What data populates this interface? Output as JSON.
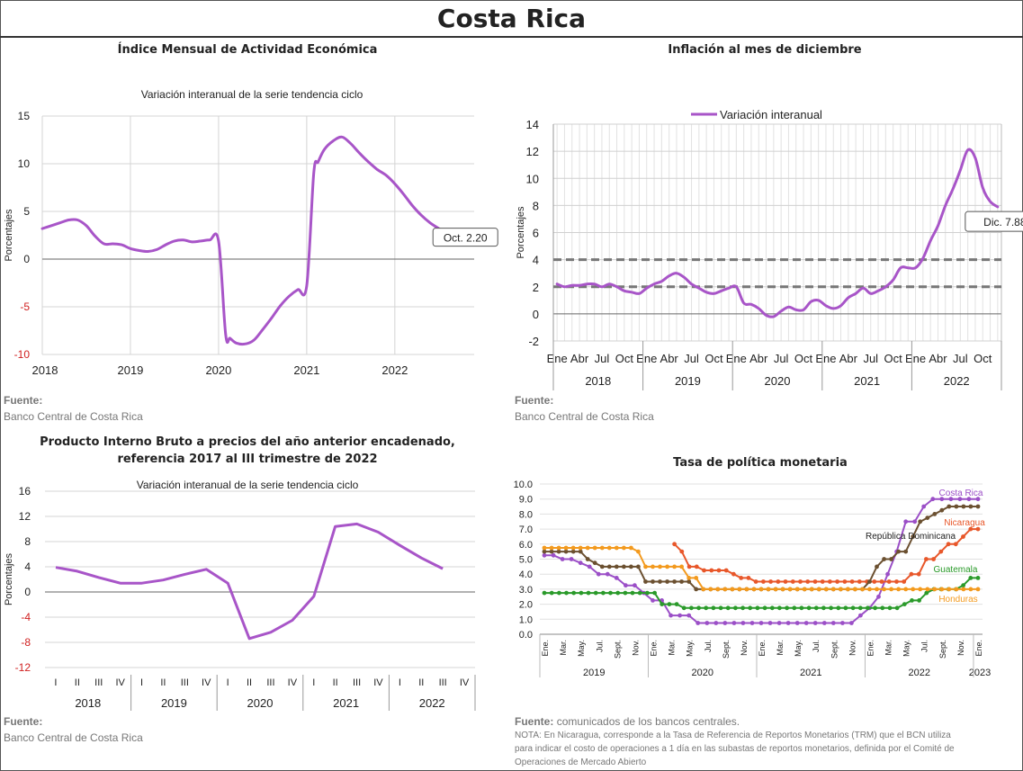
{
  "page": {
    "title": "Costa Rica"
  },
  "panels": {
    "imae": {
      "title": "Índice Mensual de  Actividad Económica",
      "subtitle": "Variación interanual de la serie tendencia ciclo",
      "source_label": "Fuente:",
      "source": "Banco Central de Costa Rica"
    },
    "infl": {
      "title": "Inflación al mes de diciembre",
      "source_label": "Fuente:",
      "source": "Banco Central de Costa Rica"
    },
    "pib": {
      "title_line1": "Producto Interno Bruto a precios del año anterior encadenado,",
      "title_line2": "referencia 2017 al III trimestre de 2022",
      "subtitle": "Variación interanual de la serie tendencia ciclo",
      "source_label": "Fuente:",
      "source": "Banco Central de Costa Rica"
    },
    "tpm": {
      "title": "Tasa de política monetaria",
      "source_label": "Fuente:",
      "source": "comunicados de los bancos centrales.",
      "note_lines": [
        "NOTA: En Nicaragua, corresponde a la Tasa de Referencia de Reportos Monetarios (TRM) que el BCN utiliza",
        "para indicar el costo de operaciones a 1 día en las subastas de reportos monetarios, definida por el Comité de",
        "Operaciones de Mercado Abierto"
      ]
    }
  },
  "chart_data": [
    {
      "id": "imae",
      "type": "line",
      "ylabel": "Porcentajes",
      "ylim": [
        -10,
        15
      ],
      "yticks": [
        15,
        10,
        5,
        0,
        -5,
        -10
      ],
      "xlim": [
        2018,
        2022.9
      ],
      "xticks": [
        2018,
        2019,
        2020,
        2021,
        2022
      ],
      "series": [
        {
          "color": "#a855c8",
          "x": [
            2018,
            2018.1,
            2018.2,
            2018.3,
            2018.4,
            2018.5,
            2018.6,
            2018.7,
            2018.8,
            2018.9,
            2019,
            2019.1,
            2019.2,
            2019.3,
            2019.4,
            2019.5,
            2019.6,
            2019.7,
            2019.8,
            2019.9,
            2020,
            2020.08,
            2020.13,
            2020.2,
            2020.3,
            2020.4,
            2020.5,
            2020.6,
            2020.7,
            2020.8,
            2020.9,
            2021,
            2021.08,
            2021.13,
            2021.2,
            2021.3,
            2021.4,
            2021.5,
            2021.6,
            2021.7,
            2021.8,
            2021.9,
            2022,
            2022.1,
            2022.2,
            2022.3,
            2022.4,
            2022.5,
            2022.6,
            2022.7,
            2022.8
          ],
          "y": [
            3.2,
            3.5,
            3.8,
            4.1,
            4.1,
            3.5,
            2.4,
            1.6,
            1.6,
            1.5,
            1.1,
            0.9,
            0.8,
            1.0,
            1.5,
            1.9,
            2.0,
            1.8,
            1.9,
            2.0,
            1.9,
            -7.9,
            -8.3,
            -8.8,
            -8.9,
            -8.5,
            -7.4,
            -6.2,
            -4.9,
            -3.9,
            -3.2,
            -2.8,
            9.0,
            10.2,
            11.5,
            12.4,
            12.8,
            12.1,
            11.1,
            10.2,
            9.4,
            8.8,
            7.9,
            6.8,
            5.6,
            4.6,
            3.8,
            3.2,
            2.7,
            2.4,
            2.2
          ]
        }
      ],
      "annotation": {
        "text": "Oct. 2.20",
        "x": 2022.8,
        "y": 2.2
      }
    },
    {
      "id": "infl",
      "type": "line",
      "ylabel": "Porcentajes",
      "ylim": [
        -2,
        14
      ],
      "yticks": [
        14,
        12,
        10,
        8,
        6,
        4,
        2,
        0,
        -2
      ],
      "months": [
        "Ene",
        "Abr",
        "Jul",
        "Oct"
      ],
      "years": [
        "2018",
        "2019",
        "2020",
        "2021",
        "2022"
      ],
      "series": [
        {
          "name": "Variación interanual",
          "color": "#a855c8",
          "y": [
            2.4,
            2.2,
            2.6,
            2.5,
            2.2,
            2.0,
            2.1,
            2.1,
            2.2,
            2.2,
            2.0,
            2.2,
            2.0,
            1.7,
            1.6,
            1.5,
            1.9,
            2.2,
            2.4,
            2.8,
            3.0,
            2.7,
            2.2,
            1.9,
            1.6,
            1.5,
            1.7,
            1.9,
            2.0,
            0.8,
            0.7,
            0.4,
            -0.1,
            -0.2,
            0.2,
            0.5,
            0.3,
            0.3,
            0.9,
            1.0,
            0.6,
            0.4,
            0.6,
            1.2,
            1.5,
            1.9,
            1.5,
            1.7,
            2.0,
            2.5,
            3.4,
            3.4,
            3.4,
            4.1,
            5.4,
            6.5,
            8.0,
            9.2,
            10.6,
            12.1,
            11.5,
            9.3,
            8.3,
            7.9
          ]
        }
      ],
      "reference_lines": [
        4,
        2
      ],
      "annotation": {
        "text": "Dic. 7.88",
        "index": 63,
        "y": 7.88
      }
    },
    {
      "id": "pib",
      "type": "line",
      "ylabel": "Porcentajes",
      "ylim": [
        -12,
        16
      ],
      "yticks": [
        16,
        12,
        8,
        4,
        0,
        -4,
        -8,
        -12
      ],
      "quarters": [
        "I",
        "II",
        "III",
        "IV"
      ],
      "years": [
        "2018",
        "2019",
        "2020",
        "2021",
        "2022"
      ],
      "series": [
        {
          "color": "#a855c8",
          "y": [
            3.9,
            3.3,
            2.3,
            1.4,
            1.4,
            1.9,
            2.8,
            3.6,
            1.4,
            -7.4,
            -6.4,
            -4.5,
            -0.7,
            10.4,
            10.8,
            9.5,
            7.4,
            5.4,
            3.7
          ]
        }
      ]
    },
    {
      "id": "tpm",
      "type": "line",
      "ylim": [
        0,
        10
      ],
      "yticks": [
        "10.0",
        "9.0",
        "8.0",
        "7.0",
        "6.0",
        "5.0",
        "4.0",
        "3.0",
        "2.0",
        "1.0",
        "0.0"
      ],
      "months": [
        "Ene.",
        "Mar.",
        "May.",
        "Jul.",
        "Sept.",
        "Nov."
      ],
      "years": [
        "2019",
        "2020",
        "2021",
        "2022",
        "2023"
      ],
      "last_month": "Ene.",
      "series": [
        {
          "name": "Costa Rica",
          "color": "#9b4fc7",
          "start": 0,
          "y": [
            5.25,
            5.25,
            5.0,
            5.0,
            4.75,
            4.5,
            4.0,
            4.0,
            3.75,
            3.25,
            3.25,
            2.75,
            2.25,
            2.25,
            1.25,
            1.25,
            1.25,
            0.75,
            0.75,
            0.75,
            0.75,
            0.75,
            0.75,
            0.75,
            0.75,
            0.75,
            0.75,
            0.75,
            0.75,
            0.75,
            0.75,
            0.75,
            0.75,
            0.75,
            0.75,
            1.25,
            1.75,
            2.5,
            4.0,
            5.5,
            7.5,
            7.5,
            8.5,
            9.0,
            9.0,
            9.0,
            9.0,
            9.0,
            9.0
          ]
        },
        {
          "name": "Nicaragua",
          "color": "#e8572a",
          "start": 18,
          "y": [
            6.0,
            5.5,
            4.5,
            4.5,
            4.25,
            4.25,
            4.25,
            4.25,
            4.0,
            3.75,
            3.75,
            3.5,
            3.5,
            3.5,
            3.5,
            3.5,
            3.5,
            3.5,
            3.5,
            3.5,
            3.5,
            3.5,
            3.5,
            3.5,
            3.5,
            3.5,
            3.5,
            3.5,
            3.5,
            3.5,
            3.5,
            3.5,
            4.0,
            4.0,
            5.0,
            5.0,
            5.5,
            6.0,
            6.0,
            6.5,
            7.0,
            7.0
          ]
        },
        {
          "name": "República Dominicana",
          "color": "#6b5030",
          "start": 0,
          "y": [
            5.5,
            5.5,
            5.5,
            5.5,
            5.5,
            5.5,
            5.0,
            4.75,
            4.5,
            4.5,
            4.5,
            4.5,
            4.5,
            4.5,
            3.5,
            3.5,
            3.5,
            3.5,
            3.5,
            3.5,
            3.5,
            3.0,
            3.0,
            3.0,
            3.0,
            3.0,
            3.0,
            3.0,
            3.0,
            3.0,
            3.0,
            3.0,
            3.0,
            3.0,
            3.0,
            3.0,
            3.0,
            3.0,
            3.0,
            3.0,
            3.0,
            3.0,
            3.0,
            3.0,
            3.0,
            3.5,
            4.5,
            5.0,
            5.0,
            5.5,
            5.5,
            6.5,
            7.5,
            7.75,
            8.0,
            8.25,
            8.5,
            8.5,
            8.5,
            8.5,
            8.5
          ]
        },
        {
          "name": "Guatemala",
          "color": "#2a9a2a",
          "start": 0,
          "y": [
            2.75,
            2.75,
            2.75,
            2.75,
            2.75,
            2.75,
            2.75,
            2.75,
            2.75,
            2.75,
            2.75,
            2.75,
            2.75,
            2.75,
            2.75,
            2.75,
            2.0,
            2.0,
            2.0,
            1.75,
            1.75,
            1.75,
            1.75,
            1.75,
            1.75,
            1.75,
            1.75,
            1.75,
            1.75,
            1.75,
            1.75,
            1.75,
            1.75,
            1.75,
            1.75,
            1.75,
            1.75,
            1.75,
            1.75,
            1.75,
            1.75,
            1.75,
            1.75,
            1.75,
            1.75,
            1.75,
            1.75,
            1.75,
            1.75,
            2.0,
            2.25,
            2.25,
            2.75,
            3.0,
            3.0,
            3.0,
            3.0,
            3.25,
            3.75,
            3.75
          ]
        },
        {
          "name": "Honduras",
          "color": "#f39a1e",
          "start": 0,
          "y": [
            5.75,
            5.75,
            5.75,
            5.75,
            5.75,
            5.75,
            5.75,
            5.75,
            5.75,
            5.75,
            5.75,
            5.75,
            5.75,
            5.5,
            4.5,
            4.5,
            4.5,
            4.5,
            4.5,
            4.5,
            3.75,
            3.75,
            3.0,
            3.0,
            3.0,
            3.0,
            3.0,
            3.0,
            3.0,
            3.0,
            3.0,
            3.0,
            3.0,
            3.0,
            3.0,
            3.0,
            3.0,
            3.0,
            3.0,
            3.0,
            3.0,
            3.0,
            3.0,
            3.0,
            3.0,
            3.0,
            3.0,
            3.0,
            3.0,
            3.0,
            3.0,
            3.0,
            3.0,
            3.0,
            3.0,
            3.0,
            3.0,
            3.0,
            3.0,
            3.0,
            3.0
          ]
        }
      ]
    }
  ]
}
